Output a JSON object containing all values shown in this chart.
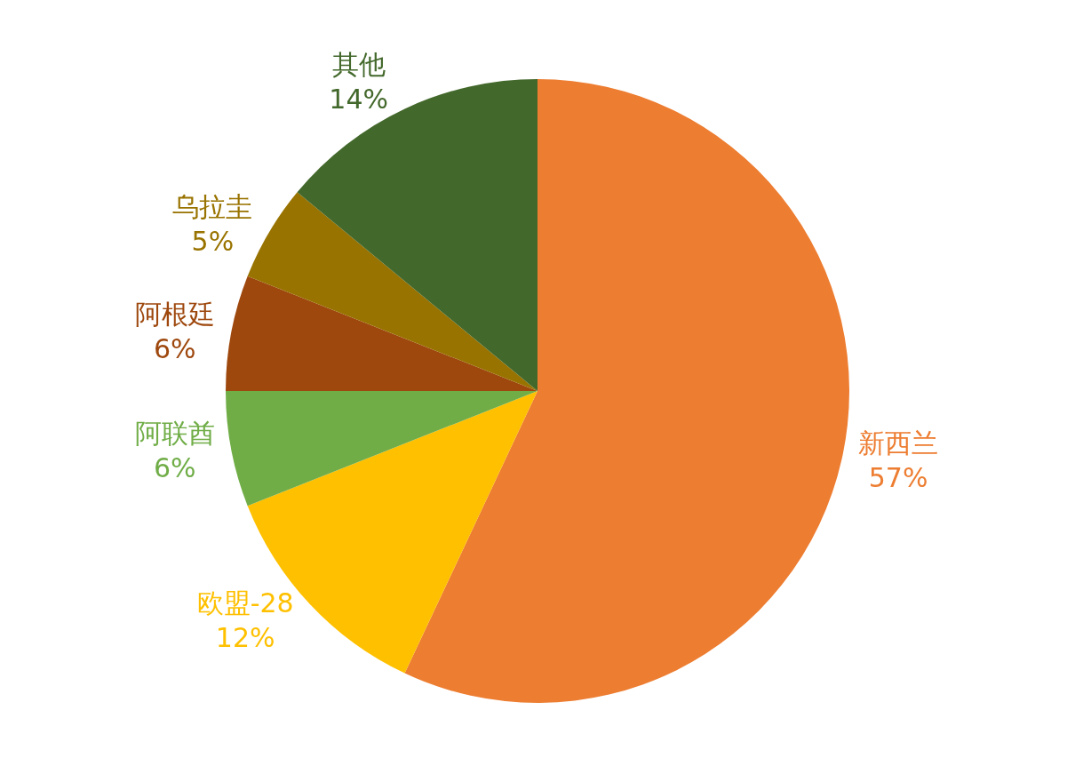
{
  "chart_data": {
    "type": "pie",
    "categories": [
      "新西兰",
      "欧盟-28",
      "阿联酋",
      "阿根廷",
      "乌拉圭",
      "其他"
    ],
    "values": [
      57,
      12,
      6,
      6,
      5,
      14
    ],
    "value_labels": [
      "57%",
      "12%",
      "6%",
      "6%",
      "5%",
      "14%"
    ],
    "colors": [
      "#ed7d31",
      "#ffc000",
      "#70ad47",
      "#9e480e",
      "#997300",
      "#43682b"
    ],
    "legend": false
  }
}
